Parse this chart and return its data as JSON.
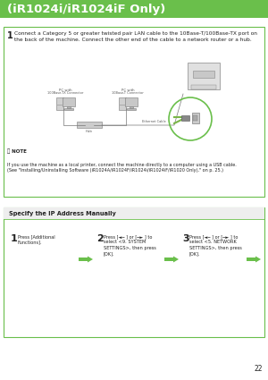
{
  "title": "(iR1024i/iR1024iF Only)",
  "title_bg": "#6abf4b",
  "title_color": "#ffffff",
  "page_number": "22",
  "bg_color": "#f5f5f5",
  "step1_text": "Connect a Category 5 or greater twisted pair LAN cable to the 10Base-T/100Base-TX port on\nthe back of the machine. Connect the other end of the cable to a network router or a hub.",
  "note_text": "If you use the machine as a local printer, connect the machine directly to a computer using a USB cable.\n(See \"Installing/Uninstalling Software (iR1024A/iR1024F/iR1024i/iR1024iF/iR1020 Only),\" on p. 25.)",
  "section2_title": "Specify the IP Address Manually",
  "sub_step1_title": "Press [Additional\nFunctions].",
  "sub_step2_title": "Press [◄─ ] or [─► ] to\nselect <9. SYSTEM\nSETTINGS>, then press\n[OK].",
  "sub_step3_title": "Press [◄─ ] or [─► ] to\nselect <5. NETWORK\nSETTINGS>, then press\n[OK].",
  "green": "#6abf4b",
  "text_color": "#222222",
  "gray": "#888888",
  "light_gray": "#d8d8d8",
  "white": "#ffffff"
}
